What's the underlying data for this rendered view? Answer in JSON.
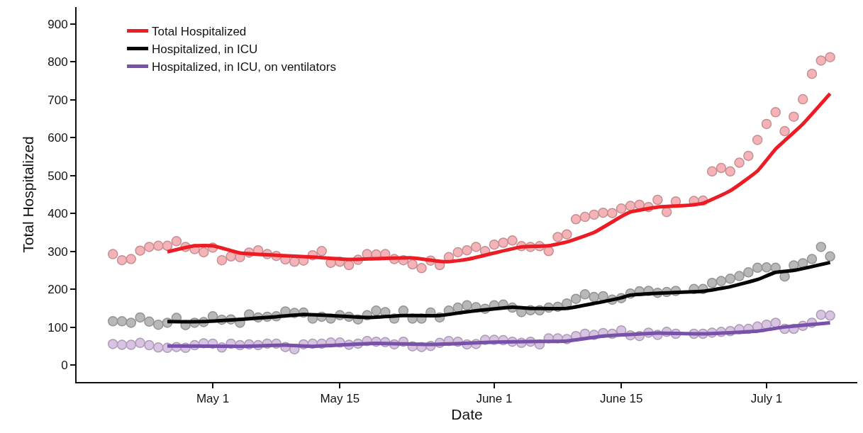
{
  "chart_data": {
    "type": "line",
    "xlabel": "Date",
    "ylabel": "Total Hospitalized",
    "x": [
      "--04-20",
      "--04-21",
      "--04-22",
      "--04-23",
      "--04-24",
      "--04-25",
      "--04-26",
      "--04-27",
      "--04-28",
      "--04-29",
      "--04-30",
      "--05-01",
      "--05-02",
      "--05-03",
      "--05-04",
      "--05-05",
      "--05-06",
      "--05-07",
      "--05-08",
      "--05-09",
      "--05-10",
      "--05-11",
      "--05-12",
      "--05-13",
      "--05-14",
      "--05-15",
      "--05-16",
      "--05-17",
      "--05-18",
      "--05-19",
      "--05-20",
      "--05-21",
      "--05-22",
      "--05-23",
      "--05-24",
      "--05-25",
      "--05-26",
      "--05-27",
      "--05-28",
      "--05-29",
      "--05-30",
      "--05-31",
      "--06-01",
      "--06-02",
      "--06-03",
      "--06-04",
      "--06-05",
      "--06-06",
      "--06-07",
      "--06-08",
      "--06-09",
      "--06-10",
      "--06-11",
      "--06-12",
      "--06-13",
      "--06-14",
      "--06-15",
      "--06-16",
      "--06-17",
      "--06-18",
      "--06-19",
      "--06-20",
      "--06-21",
      "--06-22",
      "--06-23",
      "--06-24",
      "--06-25",
      "--06-26",
      "--06-27",
      "--06-28",
      "--06-29",
      "--06-30",
      "--07-01",
      "--07-02",
      "--07-03",
      "--07-04",
      "--07-05",
      "--07-06",
      "--07-07",
      "--07-08"
    ],
    "series": [
      {
        "type": "scatter",
        "marker": "circle",
        "color": "#f6b3b7",
        "values": [
          293,
          277,
          280,
          302,
          312,
          315,
          315,
          327,
          312,
          306,
          298,
          310,
          277,
          287,
          285,
          297,
          303,
          293,
          288,
          279,
          273,
          276,
          290,
          301,
          270,
          273,
          264,
          278,
          293,
          292,
          293,
          280,
          277,
          266,
          256,
          276,
          264,
          285,
          298,
          303,
          312,
          301,
          318,
          323,
          329,
          314,
          312,
          314,
          301,
          338,
          345,
          385,
          391,
          397,
          402,
          401,
          413,
          420,
          423,
          417,
          436,
          404,
          432,
          null,
          433,
          434,
          511,
          520,
          511,
          534,
          552,
          594,
          636,
          667,
          617,
          655,
          701,
          768,
          803,
          812
        ]
      },
      {
        "type": "scatter",
        "marker": "circle",
        "color": "#b8b8b8",
        "values": [
          116,
          116,
          112,
          126,
          115,
          107,
          112,
          125,
          106,
          112,
          114,
          129,
          120,
          121,
          112,
          134,
          126,
          128,
          129,
          142,
          138,
          139,
          123,
          128,
          123,
          132,
          128,
          121,
          132,
          144,
          140,
          123,
          144,
          123,
          123,
          139,
          126,
          144,
          152,
          158,
          153,
          149,
          158,
          160,
          152,
          140,
          145,
          145,
          152,
          154,
          163,
          175,
          187,
          180,
          182,
          173,
          177,
          189,
          195,
          196,
          191,
          193,
          196,
          null,
          201,
          201,
          217,
          222,
          228,
          235,
          245,
          257,
          258,
          257,
          234,
          263,
          269,
          280,
          312,
          287
        ]
      },
      {
        "type": "scatter",
        "marker": "circle",
        "color": "#d8c3e3",
        "values": [
          56,
          54,
          54,
          59,
          53,
          47,
          46,
          48,
          46,
          53,
          58,
          57,
          47,
          57,
          53,
          55,
          53,
          57,
          57,
          48,
          42,
          55,
          57,
          57,
          60,
          60,
          54,
          57,
          64,
          62,
          61,
          55,
          62,
          50,
          48,
          51,
          59,
          64,
          62,
          55,
          56,
          67,
          67,
          66,
          62,
          59,
          62,
          55,
          71,
          71,
          69,
          77,
          83,
          80,
          85,
          83,
          92,
          79,
          77,
          86,
          80,
          88,
          83,
          null,
          83,
          83,
          86,
          88,
          90,
          95,
          96,
          102,
          107,
          112,
          96,
          96,
          104,
          112,
          133,
          131
        ]
      },
      {
        "name": "Total Hospitalized",
        "color": "#ed1c24",
        "marker": "none",
        "line_style": "solid",
        "x": [
          "--04-26",
          "--04-29",
          "--05-01",
          "--05-04",
          "--05-08",
          "--05-12",
          "--05-16",
          "--05-19",
          "--05-23",
          "--05-26",
          "--05-27",
          "--05-29",
          "--06-01",
          "--06-04",
          "--06-07",
          "--06-09",
          "--06-12",
          "--06-15",
          "--06-16",
          "--06-19",
          "--06-22",
          "--06-24",
          "--06-27",
          "--06-30",
          "--07-02",
          "--07-03",
          "--07-05",
          "--07-08"
        ],
        "values": [
          299,
          315,
          315,
          296,
          290,
          285,
          279,
          281,
          283,
          274,
          273,
          279,
          296,
          312,
          315,
          325,
          350,
          392,
          404,
          417,
          421,
          427,
          460,
          512,
          570,
          592,
          636,
          716
        ]
      },
      {
        "name": "Hospitalized, in ICU",
        "color": "#050505",
        "marker": "none",
        "line_style": "solid",
        "x": [
          "--04-26",
          "--04-30",
          "--05-04",
          "--05-08",
          "--05-11",
          "--05-14",
          "--05-18",
          "--05-22",
          "--05-26",
          "--05-29",
          "--06-03",
          "--06-05",
          "--06-09",
          "--06-12",
          "--06-15",
          "--06-16",
          "--06-20",
          "--06-24",
          "--06-27",
          "--06-30",
          "--07-02",
          "--07-04",
          "--07-08"
        ],
        "values": [
          115,
          115,
          121,
          128,
          134,
          131,
          126,
          131,
          131,
          141,
          153,
          150,
          150,
          163,
          178,
          185,
          191,
          195,
          207,
          226,
          245,
          250,
          271
        ]
      },
      {
        "name": "Hospitalized, in ICU, on ventilators",
        "color": "#7851a9",
        "marker": "none",
        "line_style": "solid",
        "x": [
          "--04-26",
          "--05-04",
          "--05-09",
          "--05-12",
          "--05-19",
          "--05-25",
          "--06-01",
          "--06-06",
          "--06-09",
          "--06-13",
          "--06-15",
          "--06-19",
          "--06-24",
          "--06-30",
          "--07-03",
          "--07-08"
        ],
        "values": [
          51,
          50,
          53,
          50,
          58,
          55,
          61,
          63,
          64,
          77,
          80,
          85,
          83,
          90,
          101,
          112
        ]
      }
    ],
    "xlim": [
      "--04-16",
      "--07-11"
    ],
    "xticks": [
      {
        "value": "--05-01",
        "label": "May 1"
      },
      {
        "value": "--05-15",
        "label": "May 15"
      },
      {
        "value": "--06-01",
        "label": "June 1"
      },
      {
        "value": "--06-15",
        "label": "June 15"
      },
      {
        "value": "--07-01",
        "label": "July 1"
      }
    ],
    "ylim": [
      -44,
      944
    ],
    "yticks": [
      0,
      100,
      200,
      300,
      400,
      500,
      600,
      700,
      800,
      900
    ],
    "legend": "top left"
  }
}
